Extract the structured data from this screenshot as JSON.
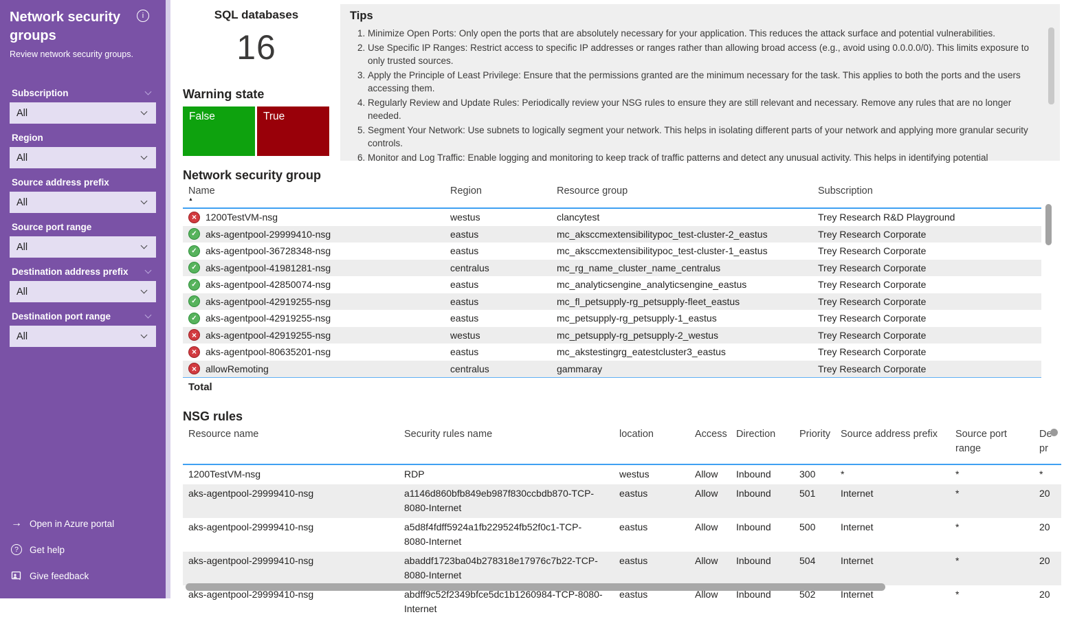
{
  "sidebar": {
    "title": "Network security groups",
    "subtitle": "Review network security groups.",
    "filters": [
      {
        "label": "Subscription",
        "value": "All",
        "header_chevron": true
      },
      {
        "label": "Region",
        "value": "All",
        "header_chevron": false
      },
      {
        "label": "Source address prefix",
        "value": "All",
        "header_chevron": false
      },
      {
        "label": "Source port range",
        "value": "All",
        "header_chevron": false
      },
      {
        "label": "Destination address prefix",
        "value": "All",
        "header_chevron": true
      },
      {
        "label": "Destination port range",
        "value": "All",
        "header_chevron": true
      }
    ],
    "links": [
      {
        "icon": "arrow-right-icon",
        "label": "Open in Azure portal"
      },
      {
        "icon": "help-icon",
        "label": "Get help"
      },
      {
        "icon": "feedback-icon",
        "label": "Give feedback"
      }
    ]
  },
  "kpi": {
    "title": "SQL databases",
    "value": "16"
  },
  "warning": {
    "title": "Warning state",
    "tiles": [
      {
        "label": "False",
        "color": "#0EA20E"
      },
      {
        "label": "True",
        "color": "#990009"
      }
    ]
  },
  "tips": {
    "title": "Tips",
    "items": [
      "Minimize Open Ports: Only open the ports that are absolutely necessary for your application. This reduces the attack surface and potential vulnerabilities.",
      "Use Specific IP Ranges: Restrict access to specific IP addresses or ranges rather than allowing broad access (e.g., avoid using 0.0.0.0/0). This limits exposure to only trusted sources.",
      "Apply the Principle of Least Privilege: Ensure that the permissions granted are the minimum necessary for the task. This applies to both the ports and the users accessing them.",
      "Regularly Review and Update Rules: Periodically review your NSG rules to ensure they are still relevant and necessary. Remove any rules that are no longer needed.",
      "Segment Your Network: Use subnets to logically segment your network. This helps in isolating different parts of your network and applying more granular security controls.",
      "Monitor and Log Traffic: Enable logging and monitoring to keep track of traffic patterns and detect any unusual activity. This helps in identifying potential"
    ]
  },
  "nsg_table": {
    "title": "Network security group",
    "columns": [
      "Name",
      "Region",
      "Resource group",
      "Subscription"
    ],
    "sorted_by": "Name",
    "sort_indicator": "▲",
    "total_label": "Total",
    "rows": [
      {
        "status": "error",
        "name": "1200TestVM-nsg",
        "region": "westus",
        "resource_group": "clancytest",
        "subscription": "Trey Research R&D Playground"
      },
      {
        "status": "ok",
        "name": "aks-agentpool-29999410-nsg",
        "region": "eastus",
        "resource_group": "mc_aksccmextensibilitypoc_test-cluster-2_eastus",
        "subscription": "Trey Research Corporate"
      },
      {
        "status": "ok",
        "name": "aks-agentpool-36728348-nsg",
        "region": "eastus",
        "resource_group": "mc_aksccmextensibilitypoc_test-cluster-1_eastus",
        "subscription": "Trey Research Corporate"
      },
      {
        "status": "ok",
        "name": "aks-agentpool-41981281-nsg",
        "region": "centralus",
        "resource_group": "mc_rg_name_cluster_name_centralus",
        "subscription": "Trey Research Corporate"
      },
      {
        "status": "ok",
        "name": "aks-agentpool-42850074-nsg",
        "region": "eastus",
        "resource_group": "mc_analyticsengine_analyticsengine_eastus",
        "subscription": "Trey Research Corporate"
      },
      {
        "status": "ok",
        "name": "aks-agentpool-42919255-nsg",
        "region": "eastus",
        "resource_group": "mc_fl_petsupply-rg_petsupply-fleet_eastus",
        "subscription": "Trey Research Corporate"
      },
      {
        "status": "ok",
        "name": "aks-agentpool-42919255-nsg",
        "region": "eastus",
        "resource_group": "mc_petsupply-rg_petsupply-1_eastus",
        "subscription": "Trey Research Corporate"
      },
      {
        "status": "error",
        "name": "aks-agentpool-42919255-nsg",
        "region": "westus",
        "resource_group": "mc_petsupply-rg_petsupply-2_westus",
        "subscription": "Trey Research Corporate"
      },
      {
        "status": "error",
        "name": "aks-agentpool-80635201-nsg",
        "region": "eastus",
        "resource_group": "mc_akstestingrg_eatestcluster3_eastus",
        "subscription": "Trey Research Corporate"
      },
      {
        "status": "error",
        "name": "allowRemoting",
        "region": "centralus",
        "resource_group": "gammaray",
        "subscription": "Trey Research Corporate"
      }
    ]
  },
  "rules_table": {
    "title": "NSG rules",
    "columns": [
      "Resource name",
      "Security rules name",
      "location",
      "Access",
      "Direction",
      "Priority",
      "Source address prefix",
      "Source port range",
      "De\npr"
    ],
    "rows": [
      {
        "resource": "1200TestVM-nsg",
        "rule": "RDP",
        "location": "westus",
        "access": "Allow",
        "direction": "Inbound",
        "priority": "300",
        "source_prefix": "*",
        "source_port": "*",
        "dest": "*"
      },
      {
        "resource": "aks-agentpool-29999410-nsg",
        "rule": "a1146d860bfb849eb987f830ccbdb870-TCP-8080-Internet",
        "location": "eastus",
        "access": "Allow",
        "direction": "Inbound",
        "priority": "501",
        "source_prefix": "Internet",
        "source_port": "*",
        "dest": "20"
      },
      {
        "resource": "aks-agentpool-29999410-nsg",
        "rule": "a5d8f4fdff5924a1fb229524fb52f0c1-TCP-8080-Internet",
        "location": "eastus",
        "access": "Allow",
        "direction": "Inbound",
        "priority": "500",
        "source_prefix": "Internet",
        "source_port": "*",
        "dest": "20"
      },
      {
        "resource": "aks-agentpool-29999410-nsg",
        "rule": "abaddf1723ba04b278318e17976c7b22-TCP-8080-Internet",
        "location": "eastus",
        "access": "Allow",
        "direction": "Inbound",
        "priority": "504",
        "source_prefix": "Internet",
        "source_port": "*",
        "dest": "20"
      },
      {
        "resource": "aks-agentpool-29999410-nsg",
        "rule": "abdff9c52f2349bfce5dc1b1260984-TCP-8080-Internet",
        "location": "eastus",
        "access": "Allow",
        "direction": "Inbound",
        "priority": "502",
        "source_prefix": "Internet",
        "source_port": "*",
        "dest": "20"
      }
    ]
  }
}
